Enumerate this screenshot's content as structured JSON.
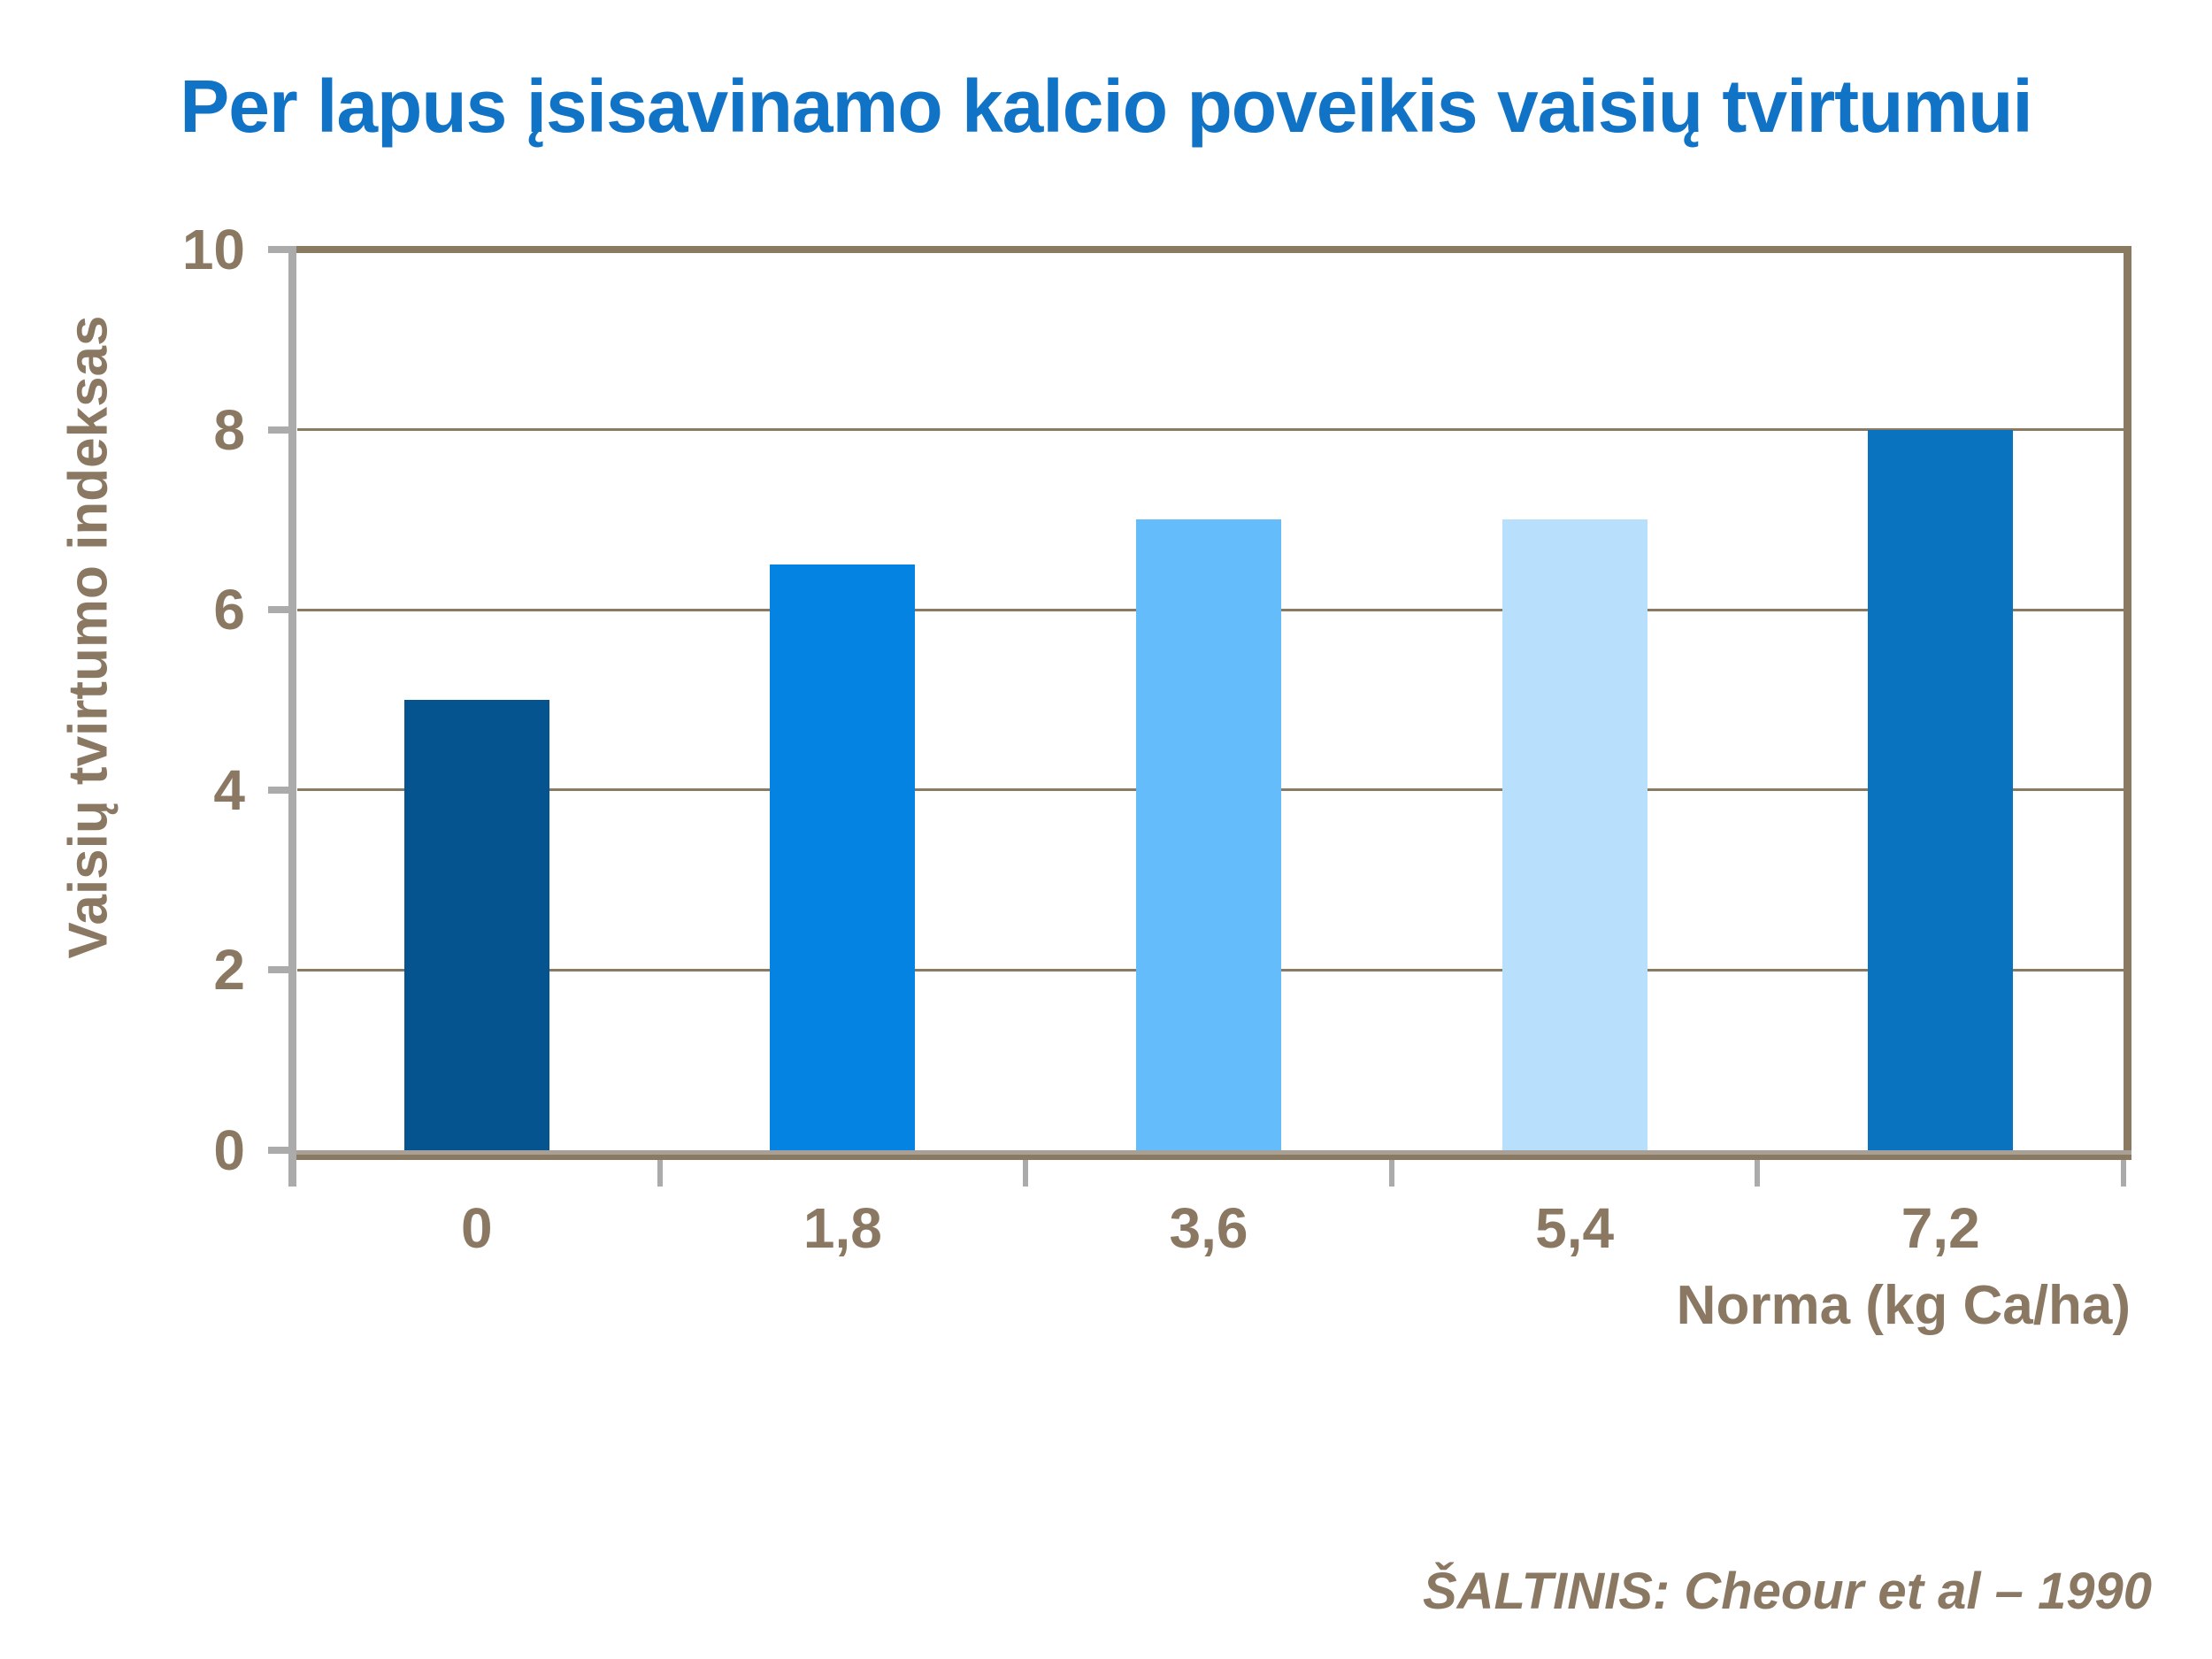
{
  "title": "Per lapus įsisavinamo kalcio poveikis vaisių tvirtumui",
  "source": "ŠALTINIS: Cheour et al – 1990",
  "chart_data": {
    "type": "bar",
    "categories": [
      "0",
      "1,8",
      "3,6",
      "5,4",
      "7,2"
    ],
    "values": [
      5,
      6.5,
      7,
      7,
      8
    ],
    "bar_colors": [
      "#05538F",
      "#0483E3",
      "#65BCFA",
      "#B8DFFB",
      "#0973BF"
    ],
    "title": "Per lapus įsisavinamo kalcio poveikis vaisių tvirtumui",
    "xlabel": "Norma (kg Ca/ha)",
    "ylabel": "Vaisių tvirtumo indeksas",
    "ylim": [
      0,
      10
    ],
    "yticks": [
      0,
      2,
      4,
      6,
      8,
      10
    ],
    "grid": "horizontal-only",
    "legend": "none"
  },
  "colors": {
    "title_blue": "#1173C5",
    "axis_text_brown": "#8A7862",
    "line_brown": "#8A7A62",
    "axis_gray": "#ABABAB",
    "background": "#FFFFFF"
  }
}
